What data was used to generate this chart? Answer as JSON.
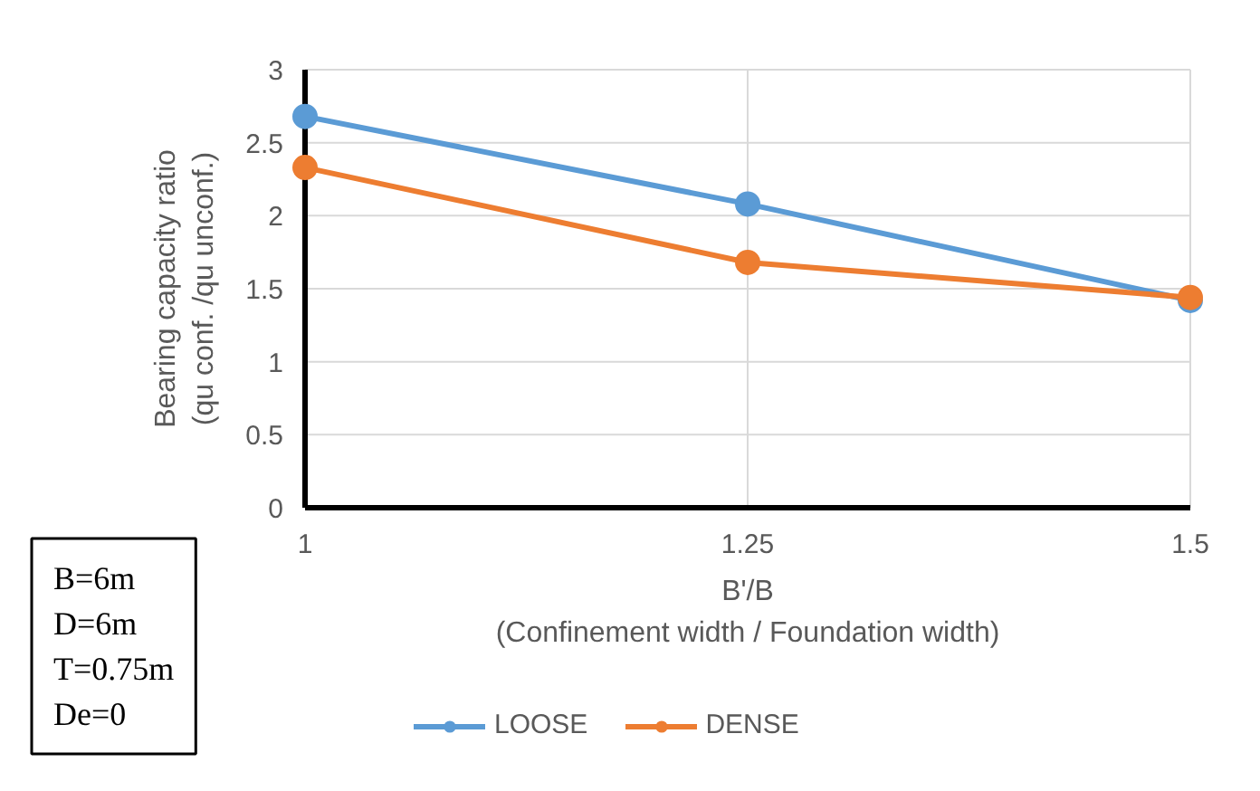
{
  "chart_data": {
    "type": "line",
    "xlabel": "B'/B\n(Confinement width / Foundation width)",
    "ylabel": "Bearing capacity ratio\n(qu conf. /qu unconf.)",
    "x": [
      1,
      1.25,
      1.5
    ],
    "xlim": [
      1,
      1.5
    ],
    "xticks": [
      1,
      1.25,
      1.5
    ],
    "ylim": [
      0,
      3
    ],
    "yticks": [
      0,
      0.5,
      1,
      1.5,
      2,
      2.5,
      3
    ],
    "series": [
      {
        "name": "LOOSE",
        "color": "#5b9bd5",
        "values": [
          2.68,
          2.08,
          1.42
        ]
      },
      {
        "name": "DENSE",
        "color": "#ed7d31",
        "values": [
          2.33,
          1.68,
          1.44
        ]
      }
    ],
    "marker": "circle",
    "grid": true,
    "legend": "bottom",
    "annotations": [
      "B=6m",
      "D=6m",
      "T=0.75m",
      "De=0"
    ]
  }
}
